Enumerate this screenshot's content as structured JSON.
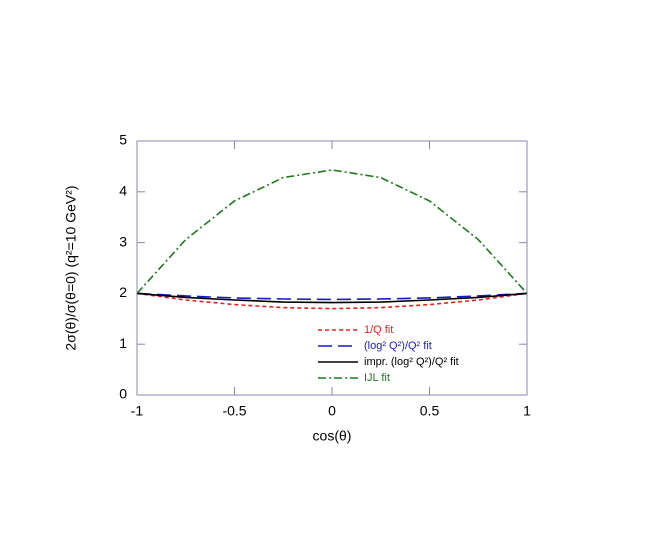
{
  "chart_data": {
    "type": "line",
    "x_label": "cos(θ)",
    "y_label": "2σ(θ)/σ(θ=0)  (q²=10 GeV²)",
    "x": [
      -1,
      -0.75,
      -0.5,
      -0.25,
      0,
      0.25,
      0.5,
      0.75,
      1
    ],
    "series": [
      {
        "name": "1/Q fit",
        "color": "#e8231e",
        "dash": "4 3",
        "values": [
          2,
          1.87,
          1.78,
          1.72,
          1.7,
          1.72,
          1.78,
          1.87,
          2
        ]
      },
      {
        "name": "(log² Q²)/Q² fit",
        "color": "#1a1acc",
        "dash": "14 6",
        "values": [
          2,
          1.95,
          1.91,
          1.89,
          1.88,
          1.89,
          1.91,
          1.95,
          2
        ]
      },
      {
        "name": "impr. (log² Q²)/Q² fit",
        "color": "#000000",
        "dash": "none",
        "values": [
          2,
          1.92,
          1.87,
          1.83,
          1.82,
          1.83,
          1.87,
          1.92,
          2
        ]
      },
      {
        "name": "IJL fit",
        "color": "#1f7a1f",
        "dash": "8 3 2 3",
        "values": [
          2,
          3.06,
          3.82,
          4.28,
          4.43,
          4.28,
          3.82,
          3.06,
          2
        ]
      }
    ],
    "xlim": [
      -1,
      1
    ],
    "xticks": [
      -1,
      -0.5,
      0,
      0.5,
      1
    ],
    "ylim": [
      0,
      5
    ],
    "yticks": [
      0,
      1,
      2,
      3,
      4,
      5
    ],
    "legend": "lower right"
  }
}
